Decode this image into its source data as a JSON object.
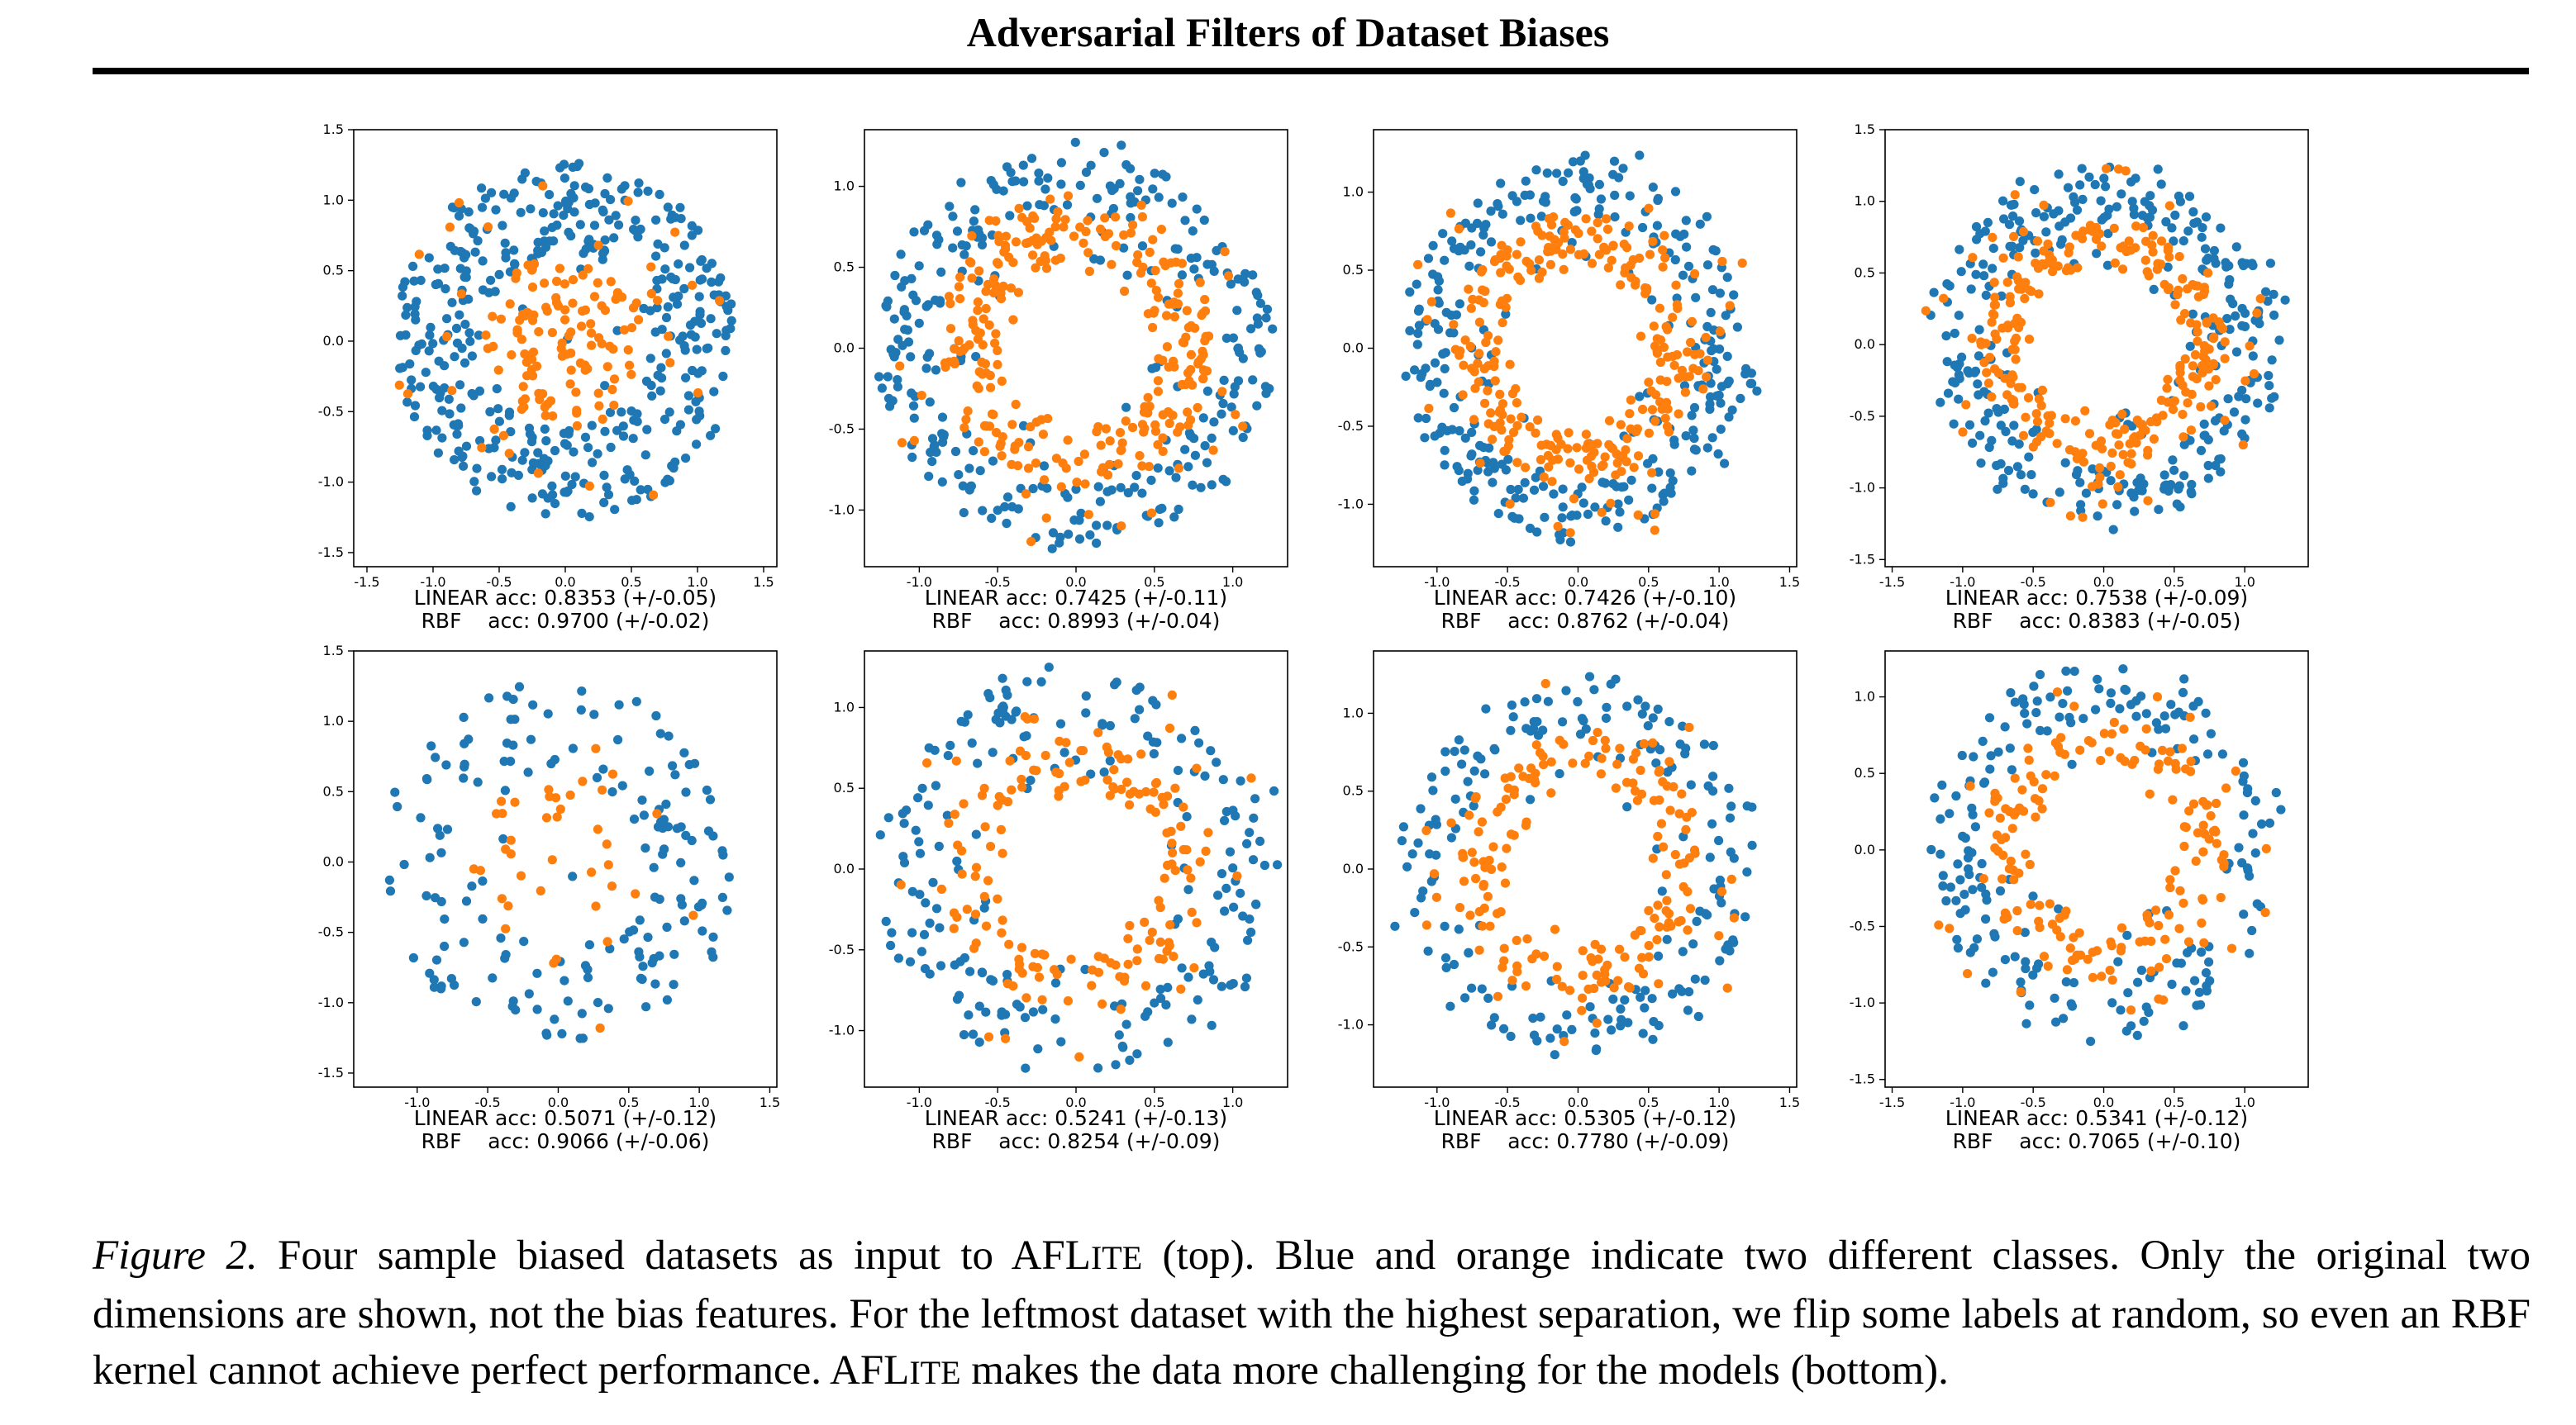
{
  "header": {
    "title": "Adversarial Filters of Dataset Biases"
  },
  "colors": {
    "class_a": "#1f77b4",
    "class_b": "#ff7f0e"
  },
  "caption": {
    "label": "Figure 2.",
    "t1": "Four sample biased datasets as input to ",
    "af1_big": "AFL",
    "af1_small": "ITE",
    "t2": " (top). Blue and orange indicate two different classes. Only the original two dimensions are shown, not the bias features. For the leftmost dataset with the highest separation, we flip some labels at random, so even an RBF kernel cannot achieve perfect performance. ",
    "af2_big": "AFL",
    "af2_small": "ITE",
    "t3": " makes the data more challenging for the models (bottom)."
  },
  "chart_data": [
    {
      "type": "scatter",
      "row": "top",
      "dataset": "disk",
      "series": [
        {
          "color": "#1f77b4"
        },
        {
          "color": "#ff7f0e"
        }
      ],
      "xlim": [
        -1.6,
        1.6
      ],
      "ylim": [
        -1.6,
        1.5
      ],
      "xticks": [
        "-1.5",
        "-1.0",
        "-0.5",
        "0.0",
        "0.5",
        "1.0",
        "1.5"
      ],
      "xtick_values": [
        -1.5,
        -1.0,
        -0.5,
        0.0,
        0.5,
        1.0,
        1.5
      ],
      "yticks": [
        "1.5",
        "1.0",
        "0.5",
        "0.0",
        "-0.5",
        "-1.0",
        "-1.5"
      ],
      "ytick_values": [
        1.5,
        1.0,
        0.5,
        0.0,
        -0.5,
        -1.0,
        -1.5
      ],
      "linear_label": "LINEAR acc: 0.8353 (+/-0.05)",
      "rbf_label": "RBF    acc: 0.9700 (+/-0.02)"
    },
    {
      "type": "scatter",
      "row": "top",
      "dataset": "ring",
      "series": [
        {
          "color": "#1f77b4"
        },
        {
          "color": "#ff7f0e"
        }
      ],
      "xlim": [
        -1.35,
        1.35
      ],
      "ylim": [
        -1.35,
        1.35
      ],
      "xticks": [
        "-1.0",
        "-0.5",
        "0.0",
        "0.5",
        "1.0"
      ],
      "xtick_values": [
        -1.0,
        -0.5,
        0.0,
        0.5,
        1.0
      ],
      "yticks": [
        "1.0",
        "0.5",
        "0.0",
        "-0.5",
        "-1.0"
      ],
      "ytick_values": [
        1.0,
        0.5,
        0.0,
        -0.5,
        -1.0
      ],
      "linear_label": "LINEAR acc: 0.7425 (+/-0.11)",
      "rbf_label": "RBF    acc: 0.8993 (+/-0.04)"
    },
    {
      "type": "scatter",
      "row": "top",
      "dataset": "ring",
      "series": [
        {
          "color": "#1f77b4"
        },
        {
          "color": "#ff7f0e"
        }
      ],
      "xlim": [
        -1.45,
        1.55
      ],
      "ylim": [
        -1.4,
        1.4
      ],
      "xticks": [
        "-1.0",
        "-0.5",
        "0.0",
        "0.5",
        "1.0",
        "1.5"
      ],
      "xtick_values": [
        -1.0,
        -0.5,
        0.0,
        0.5,
        1.0,
        1.5
      ],
      "yticks": [
        "1.0",
        "0.5",
        "0.0",
        "-0.5",
        "-1.0"
      ],
      "ytick_values": [
        1.0,
        0.5,
        0.0,
        -0.5,
        -1.0
      ],
      "linear_label": "LINEAR acc: 0.7426 (+/-0.10)",
      "rbf_label": "RBF    acc: 0.8762 (+/-0.04)"
    },
    {
      "type": "scatter",
      "row": "top",
      "dataset": "ring",
      "series": [
        {
          "color": "#1f77b4"
        },
        {
          "color": "#ff7f0e"
        }
      ],
      "xlim": [
        -1.55,
        1.45
      ],
      "ylim": [
        -1.55,
        1.5
      ],
      "xticks": [
        "-1.5",
        "-1.0",
        "-0.5",
        "0.0",
        "0.5",
        "1.0"
      ],
      "xtick_values": [
        -1.5,
        -1.0,
        -0.5,
        0.0,
        0.5,
        1.0
      ],
      "yticks": [
        "1.5",
        "1.0",
        "0.5",
        "0.0",
        "-0.5",
        "-1.0",
        "-1.5"
      ],
      "ytick_values": [
        1.5,
        1.0,
        0.5,
        0.0,
        -0.5,
        -1.0,
        -1.5
      ],
      "linear_label": "LINEAR acc: 0.7538 (+/-0.09)",
      "rbf_label": "RBF    acc: 0.8383 (+/-0.05)"
    },
    {
      "type": "scatter",
      "row": "bottom",
      "dataset": "disk",
      "series": [
        {
          "color": "#1f77b4"
        },
        {
          "color": "#ff7f0e"
        }
      ],
      "xlim": [
        -1.45,
        1.55
      ],
      "ylim": [
        -1.6,
        1.5
      ],
      "xticks": [
        "-1.0",
        "-0.5",
        "0.0",
        "0.5",
        "1.0",
        "1.5"
      ],
      "xtick_values": [
        -1.0,
        -0.5,
        0.0,
        0.5,
        1.0,
        1.5
      ],
      "yticks": [
        "1.5",
        "1.0",
        "0.5",
        "0.0",
        "-0.5",
        "-1.0",
        "-1.5"
      ],
      "ytick_values": [
        1.5,
        1.0,
        0.5,
        0.0,
        -0.5,
        -1.0,
        -1.5
      ],
      "linear_label": "LINEAR acc: 0.5071 (+/-0.12)",
      "rbf_label": "RBF    acc: 0.9066 (+/-0.06)"
    },
    {
      "type": "scatter",
      "row": "bottom",
      "dataset": "ring",
      "series": [
        {
          "color": "#1f77b4"
        },
        {
          "color": "#ff7f0e"
        }
      ],
      "xlim": [
        -1.35,
        1.35
      ],
      "ylim": [
        -1.35,
        1.35
      ],
      "xticks": [
        "-1.0",
        "-0.5",
        "0.0",
        "0.5",
        "1.0"
      ],
      "xtick_values": [
        -1.0,
        -0.5,
        0.0,
        0.5,
        1.0
      ],
      "yticks": [
        "1.0",
        "0.5",
        "0.0",
        "-0.5",
        "-1.0"
      ],
      "ytick_values": [
        1.0,
        0.5,
        0.0,
        -0.5,
        -1.0
      ],
      "linear_label": "LINEAR acc: 0.5241 (+/-0.13)",
      "rbf_label": "RBF    acc: 0.8254 (+/-0.09)"
    },
    {
      "type": "scatter",
      "row": "bottom",
      "dataset": "ring",
      "series": [
        {
          "color": "#1f77b4"
        },
        {
          "color": "#ff7f0e"
        }
      ],
      "xlim": [
        -1.45,
        1.55
      ],
      "ylim": [
        -1.4,
        1.4
      ],
      "xticks": [
        "-1.0",
        "-0.5",
        "0.0",
        "0.5",
        "1.0",
        "1.5"
      ],
      "xtick_values": [
        -1.0,
        -0.5,
        0.0,
        0.5,
        1.0,
        1.5
      ],
      "yticks": [
        "1.0",
        "0.5",
        "0.0",
        "-0.5",
        "-1.0"
      ],
      "ytick_values": [
        1.0,
        0.5,
        0.0,
        -0.5,
        -1.0
      ],
      "linear_label": "LINEAR acc: 0.5305 (+/-0.12)",
      "rbf_label": "RBF    acc: 0.7780 (+/-0.09)"
    },
    {
      "type": "scatter",
      "row": "bottom",
      "dataset": "ring",
      "series": [
        {
          "color": "#1f77b4"
        },
        {
          "color": "#ff7f0e"
        }
      ],
      "xlim": [
        -1.55,
        1.45
      ],
      "ylim": [
        -1.55,
        1.3
      ],
      "xticks": [
        "-1.5",
        "-1.0",
        "-0.5",
        "0.0",
        "0.5",
        "1.0"
      ],
      "xtick_values": [
        -1.5,
        -1.0,
        -0.5,
        0.0,
        0.5,
        1.0
      ],
      "yticks": [
        "1.0",
        "0.5",
        "0.0",
        "-0.5",
        "-1.0",
        "-1.5"
      ],
      "ytick_values": [
        1.0,
        0.5,
        0.0,
        -0.5,
        -1.0,
        -1.5
      ],
      "linear_label": "LINEAR acc: 0.5341 (+/-0.12)",
      "rbf_label": "RBF    acc: 0.7065 (+/-0.10)"
    }
  ]
}
